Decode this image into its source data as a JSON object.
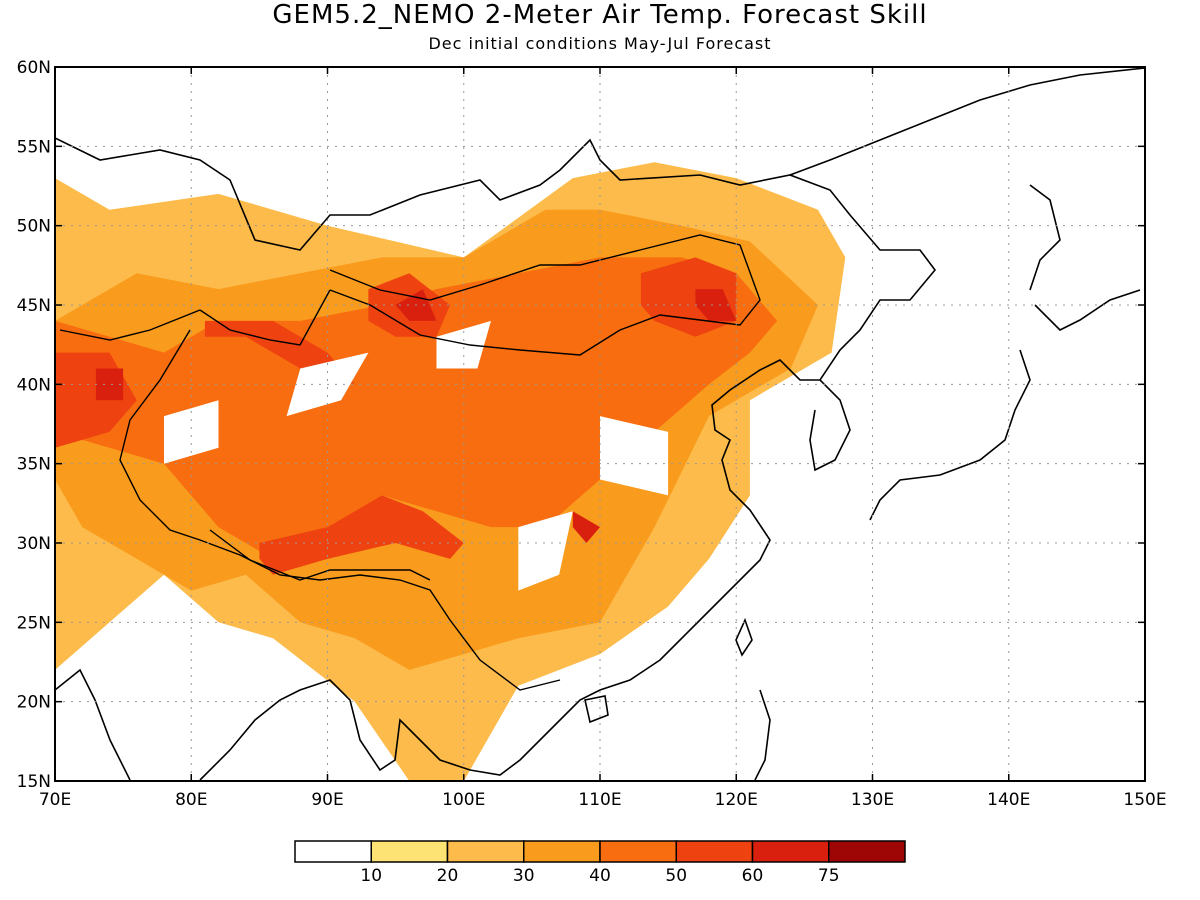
{
  "title": "GEM5.2_NEMO 2-Meter Air Temp. Forecast Skill",
  "subtitle": "Dec initial conditions  May-Jul Forecast",
  "map": {
    "lon_range": [
      70,
      150
    ],
    "lat_range": [
      15,
      60
    ],
    "lon_ticks": [
      "70E",
      "80E",
      "90E",
      "100E",
      "110E",
      "120E",
      "130E",
      "140E",
      "150E"
    ],
    "lat_ticks": [
      "15N",
      "20N",
      "25N",
      "30N",
      "35N",
      "40N",
      "45N",
      "50N",
      "55N",
      "60N"
    ],
    "grid": "dotted"
  },
  "colorbar": {
    "colors": [
      "#ffffff",
      "#fde274",
      "#fcbb4a",
      "#f99b1c",
      "#f76d0f",
      "#ee4210",
      "#d9200f",
      "#9e0606"
    ],
    "labels": [
      "10",
      "20",
      "30",
      "40",
      "50",
      "60",
      "75"
    ]
  },
  "chart_data": {
    "type": "heatmap",
    "title": "GEM5.2_NEMO 2-Meter Air Temp. Forecast Skill",
    "subtitle": "Dec initial conditions  May-Jul Forecast",
    "xlabel": "",
    "ylabel": "",
    "xlim": [
      70,
      150
    ],
    "ylim": [
      15,
      60
    ],
    "levels": [
      10,
      20,
      30,
      40,
      50,
      60,
      75
    ],
    "regions": [
      {
        "name": "",
        "level": 20,
        "lon": [
          70,
          74,
          82,
          90,
          100,
          108,
          114,
          120,
          126,
          128,
          127,
          121,
          121,
          118,
          115,
          110,
          104,
          100,
          96,
          92,
          86,
          82,
          78,
          74,
          70
        ],
        "lat": [
          53,
          51,
          52,
          50,
          48,
          53,
          54,
          53,
          51,
          48,
          42,
          39,
          33,
          29,
          26,
          23,
          21,
          15,
          15,
          20,
          24,
          25,
          28,
          25,
          22
        ]
      },
      {
        "name": "",
        "level": 30,
        "lon": [
          70,
          76,
          82,
          88,
          94,
          100,
          106,
          110,
          116,
          121,
          126,
          124,
          118,
          114,
          110,
          104,
          100,
          96,
          92,
          88,
          84,
          80,
          76,
          72,
          70
        ],
        "lat": [
          44,
          47,
          46,
          47,
          48,
          48,
          51,
          51,
          50,
          49,
          45,
          41,
          38,
          31,
          25,
          24,
          23,
          22,
          24,
          25,
          28,
          27,
          29,
          31,
          34
        ]
      },
      {
        "name": "",
        "level": 40,
        "lon": [
          70,
          74,
          78,
          82,
          88,
          94,
          98,
          104,
          110,
          116,
          120,
          123,
          121,
          118,
          114,
          110,
          106,
          102,
          98,
          94,
          90,
          86,
          82,
          78,
          74,
          70
        ],
        "lat": [
          44,
          43,
          42,
          44,
          44,
          45,
          46,
          47,
          48,
          48,
          47,
          44,
          42,
          40,
          37,
          34,
          31,
          31,
          32,
          33,
          31,
          29,
          31,
          35,
          36,
          37
        ]
      },
      {
        "name": "",
        "level": 50,
        "lon": [
          70,
          74,
          76,
          74,
          70
        ],
        "lat": [
          42,
          42,
          39,
          37,
          36
        ]
      },
      {
        "name": "",
        "level": 50,
        "lon": [
          81,
          86,
          90,
          92,
          88,
          84,
          81
        ],
        "lat": [
          44,
          44,
          42,
          40,
          41,
          43,
          43
        ]
      },
      {
        "name": "",
        "level": 50,
        "lon": [
          93,
          96,
          99,
          98,
          95,
          93
        ],
        "lat": [
          46,
          47,
          45,
          43,
          43,
          44
        ]
      },
      {
        "name": "",
        "level": 50,
        "lon": [
          113,
          117,
          120,
          120,
          117,
          114,
          113
        ],
        "lat": [
          47,
          48,
          47,
          44,
          43,
          44,
          45
        ]
      },
      {
        "name": "",
        "level": 50,
        "lon": [
          85,
          90,
          94,
          97,
          100,
          99,
          95,
          90,
          86,
          85
        ],
        "lat": [
          30,
          31,
          33,
          32,
          30,
          29,
          30,
          29,
          28,
          29
        ]
      },
      {
        "name": "",
        "level": 60,
        "lon": [
          95,
          97,
          98,
          96,
          95
        ],
        "lat": [
          45,
          46,
          44,
          44,
          45
        ]
      },
      {
        "name": "",
        "level": 60,
        "lon": [
          117,
          119,
          120,
          118,
          117
        ],
        "lat": [
          46,
          46,
          44,
          44,
          45
        ]
      },
      {
        "name": "",
        "level": 60,
        "lon": [
          73,
          75,
          75,
          73
        ],
        "lat": [
          41,
          41,
          39,
          39
        ]
      },
      {
        "name": "",
        "level": 60,
        "lon": [
          108,
          110,
          109,
          108
        ],
        "lat": [
          32,
          31,
          30,
          31
        ]
      }
    ],
    "gaps": [
      {
        "lon": [
          78,
          82,
          82,
          78
        ],
        "lat": [
          38,
          39,
          36,
          35
        ]
      },
      {
        "lon": [
          98,
          102,
          101,
          98
        ],
        "lat": [
          43,
          44,
          41,
          41
        ]
      },
      {
        "lon": [
          110,
          115,
          115,
          110
        ],
        "lat": [
          38,
          37,
          33,
          34
        ]
      },
      {
        "lon": [
          104,
          108,
          107,
          104
        ],
        "lat": [
          31,
          32,
          28,
          27
        ]
      },
      {
        "lon": [
          88,
          93,
          91,
          87
        ],
        "lat": [
          41,
          42,
          39,
          38
        ]
      }
    ]
  }
}
